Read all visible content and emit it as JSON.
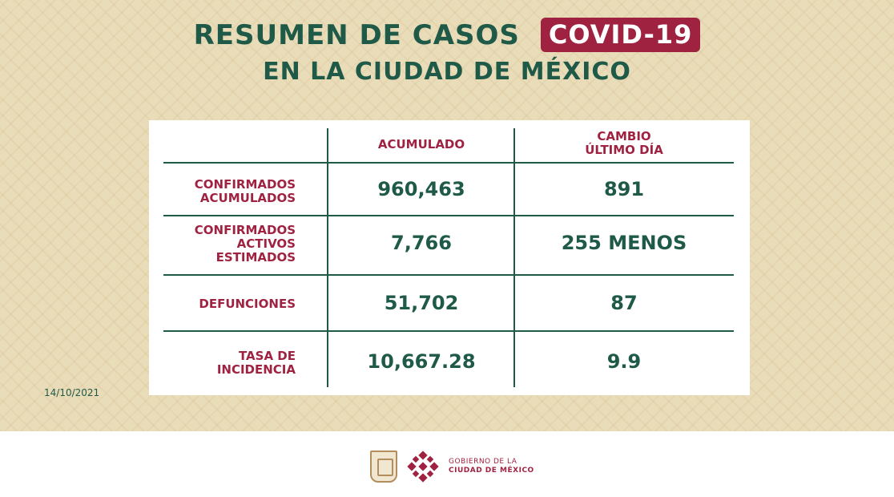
{
  "header": {
    "title": "RESUMEN DE CASOS",
    "badge": "COVID-19",
    "subtitle": "EN LA CIUDAD DE MÉXICO"
  },
  "table": {
    "columns": [
      "ACUMULADO",
      "CAMBIO\nÚLTIMO DÍA"
    ],
    "rows": [
      {
        "label": "CONFIRMADOS\nACUMULADOS",
        "acumulado": "960,463",
        "cambio": "891"
      },
      {
        "label": "CONFIRMADOS\nACTIVOS\nESTIMADOS",
        "acumulado": "7,766",
        "cambio": "255 MENOS"
      },
      {
        "label": "DEFUNCIONES",
        "acumulado": "51,702",
        "cambio": "87"
      },
      {
        "label": "TASA DE\nINCIDENCIA",
        "acumulado": "10,667.28",
        "cambio": "9.9"
      }
    ]
  },
  "date": "14/10/2021",
  "footer": {
    "gov_line1": "GOBIERNO DE LA",
    "gov_line2": "CIUDAD DE MÉXICO"
  },
  "colors": {
    "green": "#1f5a49",
    "wine": "#9f2241",
    "beige": "#e9dcb8"
  },
  "icons": [
    "cdmx-shield-icon",
    "cdmx-logo-icon"
  ]
}
